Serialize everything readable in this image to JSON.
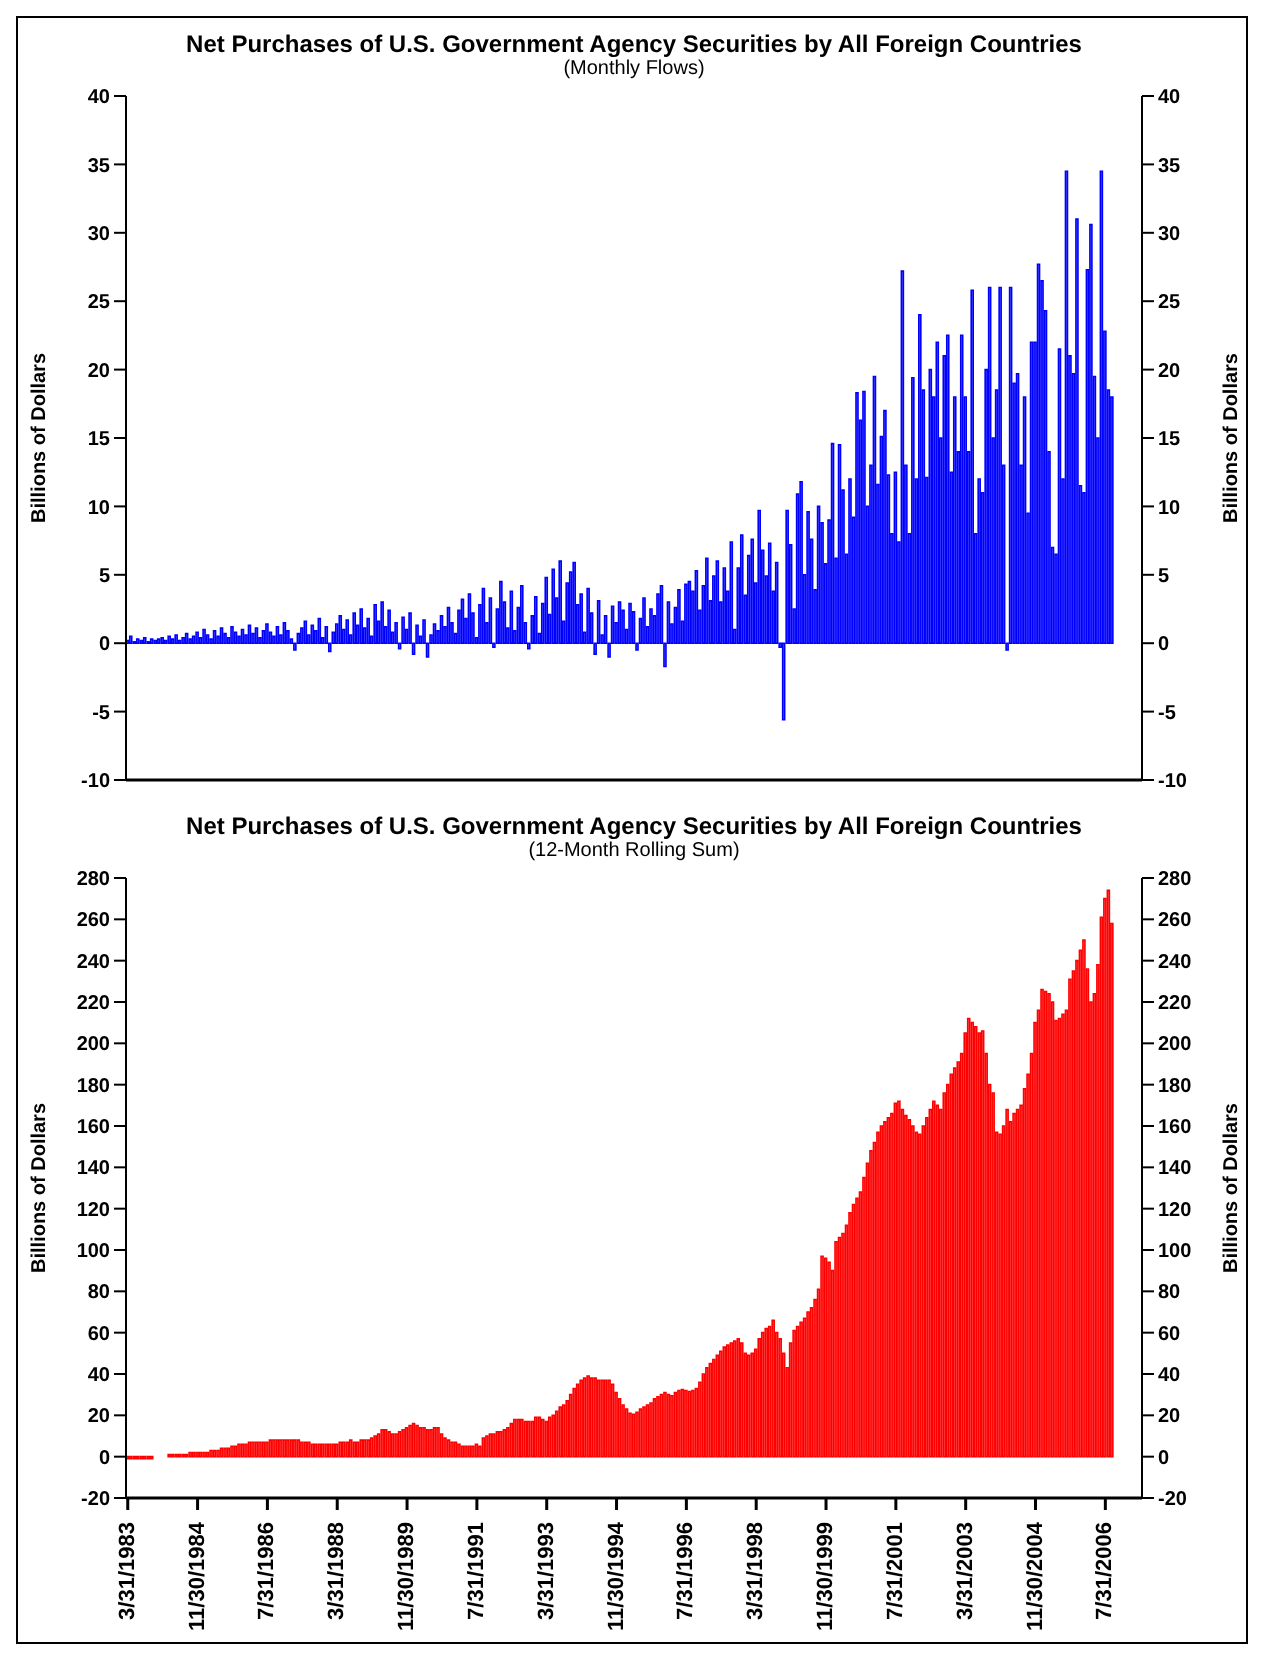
{
  "chart_data": [
    {
      "type": "bar",
      "title": "Net Purchases of U.S. Government Agency Securities by All Foreign Countries",
      "subtitle": "(Monthly Flows)",
      "ylabel": "Billions of Dollars",
      "y2label": "Billions of Dollars",
      "categories": [
        null,
        null,
        null,
        null,
        null,
        null,
        null,
        null,
        null,
        null,
        null,
        null,
        null,
        null,
        null,
        null,
        null,
        null,
        null,
        null,
        null,
        null,
        null,
        null,
        null,
        null,
        null,
        null,
        null,
        null,
        null,
        null,
        null,
        null,
        null,
        null,
        null,
        null,
        null,
        null,
        null,
        null,
        null,
        null,
        null,
        null,
        null,
        null,
        null,
        null,
        null,
        null,
        null,
        null,
        null,
        null,
        null,
        null,
        null,
        null,
        null,
        null,
        null,
        null,
        null,
        null,
        null,
        null,
        null,
        null,
        null,
        null,
        null,
        null,
        null,
        null,
        null,
        null,
        null,
        null,
        null,
        null,
        null,
        null,
        null,
        null,
        null,
        null,
        null,
        null,
        null,
        null,
        null,
        null,
        null,
        null,
        null,
        null,
        null,
        null,
        null,
        null,
        null,
        null,
        null,
        null,
        null,
        null,
        null,
        null,
        null,
        null,
        null,
        null,
        null,
        null,
        null,
        null,
        null,
        null,
        null,
        null,
        null,
        null,
        null,
        null,
        null,
        null,
        null,
        null,
        null,
        null,
        null,
        null,
        null,
        null,
        null,
        null,
        null,
        null,
        null,
        null,
        null,
        null,
        null,
        null,
        null,
        null,
        null,
        null,
        null,
        null,
        null,
        null,
        null,
        null,
        null,
        null,
        null,
        null,
        null,
        null,
        null,
        null,
        null,
        null,
        null,
        null,
        null,
        null,
        null,
        null,
        null,
        null,
        null,
        null,
        null,
        null,
        null,
        null,
        null,
        null,
        null,
        null,
        null,
        null,
        null,
        null,
        null,
        null,
        null,
        null,
        null,
        null,
        null,
        null,
        null,
        null,
        null,
        null,
        null,
        null,
        null,
        null,
        null,
        null,
        null,
        null,
        null,
        null,
        null,
        null,
        null,
        null,
        null,
        null,
        null,
        null,
        null,
        null,
        null,
        null,
        null,
        null,
        null,
        null,
        null,
        null,
        null,
        null,
        null,
        null,
        null,
        null,
        null,
        null,
        null,
        null,
        null,
        null,
        null,
        null,
        null,
        null,
        null,
        null,
        null,
        null,
        null,
        null,
        null,
        null,
        null,
        null,
        null,
        null,
        null,
        null,
        null,
        null,
        null,
        null,
        null,
        null,
        null,
        null,
        null,
        null,
        null,
        null,
        null,
        null,
        null,
        null,
        null,
        null,
        null,
        null,
        null,
        null,
        null,
        null,
        null,
        null,
        null,
        null,
        null,
        null,
        null,
        null,
        null
      ],
      "color": "#0000ff",
      "values": [
        0.2,
        0.5,
        0.1,
        0.3,
        0.2,
        0.4,
        0.1,
        0.3,
        0.2,
        0.3,
        0.4,
        0.2,
        0.5,
        0.3,
        0.6,
        0.2,
        0.4,
        0.7,
        0.3,
        0.5,
        0.8,
        0.4,
        1.0,
        0.6,
        0.3,
        0.9,
        0.5,
        1.1,
        0.7,
        0.4,
        1.2,
        0.8,
        0.5,
        1.0,
        0.6,
        1.3,
        0.7,
        1.1,
        0.4,
        0.9,
        1.4,
        0.8,
        0.5,
        1.2,
        0.6,
        1.5,
        0.9,
        0.3,
        -0.5,
        0.7,
        1.1,
        1.6,
        0.6,
        1.3,
        0.9,
        1.8,
        0.4,
        1.2,
        -0.6,
        0.8,
        1.4,
        2.0,
        1.0,
        1.7,
        0.6,
        2.2,
        1.3,
        2.5,
        1.1,
        1.8,
        0.5,
        2.8,
        1.6,
        3.0,
        1.2,
        2.4,
        0.8,
        1.5,
        -0.4,
        1.9,
        1.0,
        2.2,
        -0.8,
        1.3,
        0.5,
        1.7,
        -1.0,
        0.6,
        1.4,
        0.9,
        2.0,
        1.2,
        2.6,
        1.5,
        0.7,
        2.4,
        3.2,
        1.8,
        3.6,
        2.2,
        0.4,
        2.8,
        4.0,
        1.5,
        3.3,
        -0.3,
        2.5,
        4.5,
        3.0,
        1.1,
        3.8,
        0.9,
        2.6,
        4.2,
        1.5,
        -0.4,
        2.0,
        3.4,
        0.7,
        2.9,
        4.8,
        2.1,
        5.4,
        3.3,
        6.0,
        1.6,
        4.4,
        5.2,
        5.9,
        2.8,
        3.6,
        0.8,
        4.0,
        2.2,
        -0.8,
        3.1,
        0.6,
        2.0,
        -1.0,
        2.7,
        1.5,
        3.0,
        2.4,
        1.0,
        2.9,
        2.3,
        -0.5,
        1.8,
        3.3,
        1.2,
        2.5,
        2.0,
        3.6,
        4.2,
        -1.7,
        3.0,
        1.4,
        2.6,
        3.9,
        1.6,
        4.3,
        4.5,
        3.8,
        5.3,
        2.4,
        4.2,
        6.2,
        3.1,
        4.9,
        6.0,
        3.0,
        5.5,
        3.8,
        7.4,
        1.0,
        5.5,
        7.9,
        3.5,
        6.4,
        7.6,
        4.4,
        9.7,
        6.8,
        4.9,
        7.3,
        3.8,
        5.9,
        -0.3,
        -5.6,
        9.7,
        7.2,
        2.5,
        10.9,
        11.8,
        5.0,
        9.6,
        7.6,
        3.9,
        10.0,
        8.8,
        5.8,
        9.0,
        14.6,
        6.2,
        14.5,
        11.2,
        6.5,
        12.0,
        9.2,
        18.3,
        16.3,
        18.4,
        10.0,
        13.0,
        19.5,
        11.6,
        15.1,
        17.0,
        12.3,
        8.0,
        12.5,
        7.4,
        27.2,
        13.0,
        8.0,
        19.4,
        12.0,
        24.0,
        18.5,
        12.1,
        20.0,
        18.0,
        22.0,
        15.0,
        21.0,
        22.5,
        12.5,
        18.0,
        14.0,
        22.5,
        18.0,
        14.0,
        25.8,
        8.0,
        12.0,
        11.0,
        20.0,
        26.0,
        15.0,
        18.5,
        26.0,
        13.0,
        -0.5,
        26.0,
        19.0,
        19.7,
        13.0,
        18.0,
        9.5,
        22.0,
        22.0,
        27.7,
        26.5,
        24.3,
        14.0,
        7.0,
        6.5,
        21.5,
        12.0,
        34.5,
        21.0,
        19.7,
        31.0,
        11.5,
        11.0,
        27.3,
        30.6,
        19.5,
        15.0,
        34.5,
        22.8,
        18.5,
        18.0,
        null,
        null,
        null,
        null,
        null,
        null,
        null,
        null
      ],
      "ylim": [
        -10,
        40
      ],
      "yticks": [
        -10,
        -5,
        0,
        5,
        10,
        15,
        20,
        25,
        30,
        35,
        40
      ],
      "y2lim": [
        -10,
        40
      ],
      "y2ticks": [
        -10,
        -5,
        0,
        5,
        10,
        15,
        20,
        25,
        30,
        35,
        40
      ]
    },
    {
      "type": "bar",
      "title": "Net Purchases of U.S. Government Agency Securities by All Foreign Countries",
      "subtitle": "(12-Month Rolling Sum)",
      "ylabel": "Billions of Dollars",
      "y2label": "Billions of Dollars",
      "categories": [
        "3/31/1983",
        null,
        null,
        null,
        null,
        null,
        null,
        null,
        null,
        null,
        null,
        null,
        null,
        null,
        null,
        null,
        null,
        null,
        null,
        null,
        "11/30/1984",
        null,
        null,
        null,
        null,
        null,
        null,
        null,
        null,
        null,
        null,
        null,
        null,
        null,
        null,
        null,
        null,
        null,
        null,
        null,
        "7/31/1986",
        null,
        null,
        null,
        null,
        null,
        null,
        null,
        null,
        null,
        null,
        null,
        null,
        null,
        null,
        null,
        null,
        null,
        null,
        null,
        "3/31/1988",
        null,
        null,
        null,
        null,
        null,
        null,
        null,
        null,
        null,
        null,
        null,
        null,
        null,
        null,
        null,
        null,
        null,
        null,
        null,
        "11/30/1989",
        null,
        null,
        null,
        null,
        null,
        null,
        null,
        null,
        null,
        null,
        null,
        null,
        null,
        null,
        null,
        null,
        null,
        null,
        null,
        "7/31/1991",
        null,
        null,
        null,
        null,
        null,
        null,
        null,
        null,
        null,
        null,
        null,
        null,
        null,
        null,
        null,
        null,
        null,
        null,
        null,
        "3/31/1993",
        null,
        null,
        null,
        null,
        null,
        null,
        null,
        null,
        null,
        null,
        null,
        null,
        null,
        null,
        null,
        null,
        null,
        null,
        null,
        "11/30/1994",
        null,
        null,
        null,
        null,
        null,
        null,
        null,
        null,
        null,
        null,
        null,
        null,
        null,
        null,
        null,
        null,
        null,
        null,
        null,
        "7/31/1996",
        null,
        null,
        null,
        null,
        null,
        null,
        null,
        null,
        null,
        null,
        null,
        null,
        null,
        null,
        null,
        null,
        null,
        null,
        null,
        "3/31/1998",
        null,
        null,
        null,
        null,
        null,
        null,
        null,
        null,
        null,
        null,
        null,
        null,
        null,
        null,
        null,
        null,
        null,
        null,
        null,
        "11/30/1999",
        null,
        null,
        null,
        null,
        null,
        null,
        null,
        null,
        null,
        null,
        null,
        null,
        null,
        null,
        null,
        null,
        null,
        null,
        null,
        "7/31/2001",
        null,
        null,
        null,
        null,
        null,
        null,
        null,
        null,
        null,
        null,
        null,
        null,
        null,
        null,
        null,
        null,
        null,
        null,
        null,
        "3/31/2003",
        null,
        null,
        null,
        null,
        null,
        null,
        null,
        null,
        null,
        null,
        null,
        null,
        null,
        null,
        null,
        null,
        null,
        null,
        null,
        "11/30/2004",
        null,
        null,
        null,
        null,
        null,
        null,
        null,
        null,
        null,
        null,
        null,
        null,
        null,
        null,
        null,
        null,
        null,
        null,
        null,
        "7/31/2006",
        null,
        null,
        null,
        null,
        null,
        null,
        null,
        null,
        null,
        null
      ],
      "color": "#ff0000",
      "values": [
        -1,
        -1,
        -1,
        -1,
        -1,
        -1,
        -1,
        -1,
        null,
        null,
        null,
        null,
        1,
        1,
        1,
        1,
        1,
        1,
        2,
        2,
        2,
        2,
        2,
        2,
        3,
        3,
        3,
        4,
        4,
        4,
        5,
        5,
        6,
        6,
        6,
        7,
        7,
        7,
        7,
        7,
        7,
        8,
        8,
        8,
        8,
        8,
        8,
        8,
        8,
        8,
        7,
        7,
        7,
        6,
        6,
        6,
        6,
        6,
        6,
        6,
        6,
        7,
        7,
        7,
        8,
        7,
        7,
        8,
        8,
        8,
        9,
        10,
        11,
        13,
        13,
        12,
        11,
        11,
        12,
        13,
        14,
        15,
        16,
        15,
        14,
        14,
        13,
        13,
        14,
        14,
        11,
        9,
        8,
        7,
        7,
        6,
        5,
        5,
        5,
        5,
        6,
        5,
        9,
        10,
        11,
        11,
        12,
        12,
        13,
        14,
        16,
        18,
        18,
        18,
        17,
        17,
        17,
        19,
        19,
        18,
        17,
        19,
        20,
        22,
        24,
        25,
        27,
        30,
        33,
        35,
        37,
        38,
        39,
        38,
        38,
        37,
        37,
        37,
        37,
        35,
        31.0,
        28.0,
        25.0,
        23.0,
        21.0,
        20.5,
        21.5,
        23.0,
        24.0,
        25.0,
        26.0,
        28.0,
        29.0,
        30.0,
        31.0,
        30.0,
        29.5,
        31.0,
        32.0,
        32.5,
        32.0,
        31.5,
        32.0,
        33.0,
        36.0,
        40.0,
        43.0,
        45.0,
        47.0,
        49.0,
        51.0,
        53.0,
        54.0,
        55.0,
        56.0,
        57.0,
        55.0,
        50.0,
        49.0,
        50.0,
        52.0,
        57.0,
        60.0,
        62.0,
        63.0,
        66.0,
        60.0,
        57.0,
        50.0,
        43.0,
        55.0,
        61.0,
        63.0,
        65.0,
        67.0,
        70.0,
        72.0,
        76.0,
        81.0,
        97.0,
        96.0,
        94.0,
        90.0,
        104.0,
        106.0,
        108.0,
        112.0,
        118.0,
        122.0,
        125.0,
        128.0,
        135.0,
        142.0,
        148.0,
        152.0,
        157.0,
        160.0,
        162.0,
        164.0,
        166.0,
        171.0,
        172.0,
        168.0,
        165.0,
        163.0,
        160.0,
        157.0,
        156.0,
        160.0,
        164.0,
        168.0,
        172.0,
        170.0,
        168.0,
        176.0,
        180.0,
        185.0,
        188.0,
        191.0,
        195.0,
        205.0,
        212.0,
        210.0,
        208.0,
        205.0,
        206.0,
        195.0,
        180.0,
        176.0,
        157.0,
        156.0,
        160.0,
        168.0,
        162.0,
        166.0,
        168.0,
        170.0,
        178.0,
        185.0,
        195.0,
        210.0,
        216.0,
        226.0,
        225.0,
        224.0,
        220.0,
        211.0,
        212.0,
        214.0,
        216.0,
        231.0,
        235.0,
        240.0,
        245.0,
        250.0,
        236.0,
        220.0,
        224.0,
        238.0,
        261.0,
        270.0,
        274.0,
        258.0,
        null,
        null,
        null,
        null,
        null,
        null,
        null,
        null
      ],
      "ylim": [
        -20,
        280
      ],
      "yticks": [
        -20,
        0,
        20,
        40,
        60,
        80,
        100,
        120,
        140,
        160,
        180,
        200,
        220,
        240,
        260,
        280
      ],
      "y2lim": [
        -20,
        280
      ],
      "y2ticks": [
        -20,
        0,
        20,
        40,
        60,
        80,
        100,
        120,
        140,
        160,
        180,
        200,
        220,
        240,
        260,
        280
      ]
    }
  ]
}
